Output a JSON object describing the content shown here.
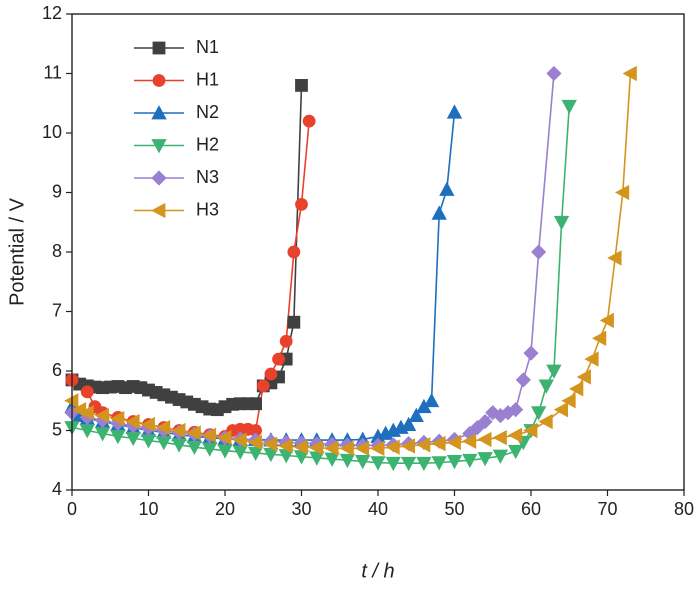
{
  "chart_data": {
    "type": "line",
    "x_label": "t / h",
    "y_label": "Potential / V",
    "xlim": [
      0,
      80
    ],
    "ylim": [
      4,
      12
    ],
    "xticks": [
      0,
      10,
      20,
      30,
      40,
      50,
      60,
      70,
      80
    ],
    "yticks": [
      4,
      5,
      6,
      7,
      8,
      9,
      10,
      11,
      12
    ],
    "legend": "upper left",
    "series": [
      {
        "name": "N1",
        "color": "#404040",
        "marker": "square",
        "x": [
          0,
          1,
          2,
          3,
          4,
          5,
          6,
          7,
          8,
          9,
          10,
          11,
          12,
          13,
          14,
          15,
          16,
          17,
          18,
          19,
          20,
          21,
          22,
          23,
          24,
          25,
          26,
          27,
          28,
          29,
          30
        ],
        "values": [
          5.85,
          5.78,
          5.75,
          5.73,
          5.72,
          5.73,
          5.74,
          5.72,
          5.74,
          5.72,
          5.68,
          5.64,
          5.6,
          5.56,
          5.52,
          5.48,
          5.44,
          5.4,
          5.36,
          5.35,
          5.4,
          5.44,
          5.45,
          5.45,
          5.45,
          5.75,
          5.8,
          5.9,
          6.2,
          6.82,
          10.8
        ]
      },
      {
        "name": "H1",
        "color": "#e8412c",
        "marker": "circle",
        "x": [
          0,
          2,
          3,
          4,
          6,
          8,
          10,
          12,
          14,
          16,
          18,
          20,
          21,
          22,
          23,
          24,
          25,
          26,
          27,
          28,
          29,
          30,
          31
        ],
        "values": [
          5.85,
          5.65,
          5.4,
          5.3,
          5.22,
          5.15,
          5.1,
          5.05,
          5.0,
          4.97,
          4.93,
          4.9,
          5.0,
          5.02,
          5.02,
          5.0,
          5.75,
          5.95,
          6.2,
          6.5,
          8.0,
          8.8,
          10.2
        ]
      },
      {
        "name": "N2",
        "color": "#1f6fbf",
        "marker": "triangle-up",
        "x": [
          0,
          1,
          2,
          4,
          6,
          8,
          10,
          12,
          14,
          16,
          18,
          20,
          22,
          24,
          26,
          28,
          30,
          32,
          34,
          36,
          38,
          40,
          41,
          42,
          43,
          44,
          45,
          46,
          47,
          48,
          49,
          50
        ],
        "values": [
          5.4,
          5.25,
          5.2,
          5.15,
          5.1,
          5.05,
          5.0,
          4.97,
          4.93,
          4.9,
          4.88,
          4.86,
          4.85,
          4.85,
          4.84,
          4.84,
          4.84,
          4.84,
          4.84,
          4.84,
          4.85,
          4.9,
          4.95,
          5.0,
          5.05,
          5.1,
          5.25,
          5.4,
          5.5,
          8.65,
          9.05,
          10.35
        ]
      },
      {
        "name": "H2",
        "color": "#3cb371",
        "marker": "triangle-down",
        "x": [
          0,
          2,
          4,
          6,
          8,
          10,
          12,
          14,
          16,
          18,
          20,
          22,
          24,
          26,
          28,
          30,
          32,
          34,
          36,
          38,
          40,
          42,
          44,
          46,
          48,
          50,
          52,
          54,
          56,
          58,
          59,
          60,
          61,
          62,
          63,
          64,
          65
        ],
        "values": [
          5.05,
          5.0,
          4.95,
          4.9,
          4.87,
          4.83,
          4.8,
          4.76,
          4.72,
          4.69,
          4.66,
          4.64,
          4.62,
          4.6,
          4.58,
          4.56,
          4.54,
          4.52,
          4.5,
          4.48,
          4.46,
          4.45,
          4.45,
          4.45,
          4.46,
          4.48,
          4.5,
          4.53,
          4.57,
          4.65,
          4.8,
          5.0,
          5.3,
          5.75,
          6.0,
          8.5,
          10.45
        ]
      },
      {
        "name": "N3",
        "color": "#9b7fd0",
        "marker": "diamond",
        "x": [
          0,
          2,
          4,
          6,
          8,
          10,
          12,
          14,
          16,
          18,
          20,
          22,
          24,
          26,
          28,
          30,
          32,
          34,
          36,
          38,
          40,
          42,
          44,
          46,
          48,
          50,
          52,
          53,
          54,
          55,
          56,
          57,
          58,
          59,
          60,
          61,
          63
        ],
        "values": [
          5.3,
          5.22,
          5.17,
          5.12,
          5.08,
          5.04,
          5.0,
          4.97,
          4.94,
          4.91,
          4.88,
          4.86,
          4.84,
          4.82,
          4.8,
          4.79,
          4.78,
          4.77,
          4.76,
          4.75,
          4.75,
          4.76,
          4.78,
          4.8,
          4.82,
          4.85,
          4.95,
          5.05,
          5.15,
          5.3,
          5.25,
          5.3,
          5.35,
          5.85,
          6.3,
          8.0,
          11.0
        ]
      },
      {
        "name": "H3",
        "color": "#d4951f",
        "marker": "triangle-left",
        "x": [
          0,
          1,
          2,
          4,
          6,
          8,
          10,
          12,
          14,
          16,
          18,
          20,
          22,
          24,
          26,
          28,
          30,
          32,
          34,
          36,
          38,
          40,
          42,
          44,
          46,
          48,
          50,
          52,
          54,
          56,
          58,
          60,
          62,
          64,
          65,
          66,
          67,
          68,
          69,
          70,
          71,
          72,
          73
        ],
        "values": [
          5.5,
          5.35,
          5.3,
          5.25,
          5.2,
          5.15,
          5.1,
          5.05,
          5.0,
          4.96,
          4.92,
          4.88,
          4.84,
          4.8,
          4.77,
          4.74,
          4.72,
          4.71,
          4.7,
          4.7,
          4.7,
          4.7,
          4.72,
          4.74,
          4.76,
          4.78,
          4.8,
          4.82,
          4.85,
          4.88,
          4.92,
          5.0,
          5.15,
          5.35,
          5.5,
          5.7,
          5.9,
          6.2,
          6.55,
          6.85,
          7.9,
          9.0,
          11.0
        ]
      }
    ]
  }
}
